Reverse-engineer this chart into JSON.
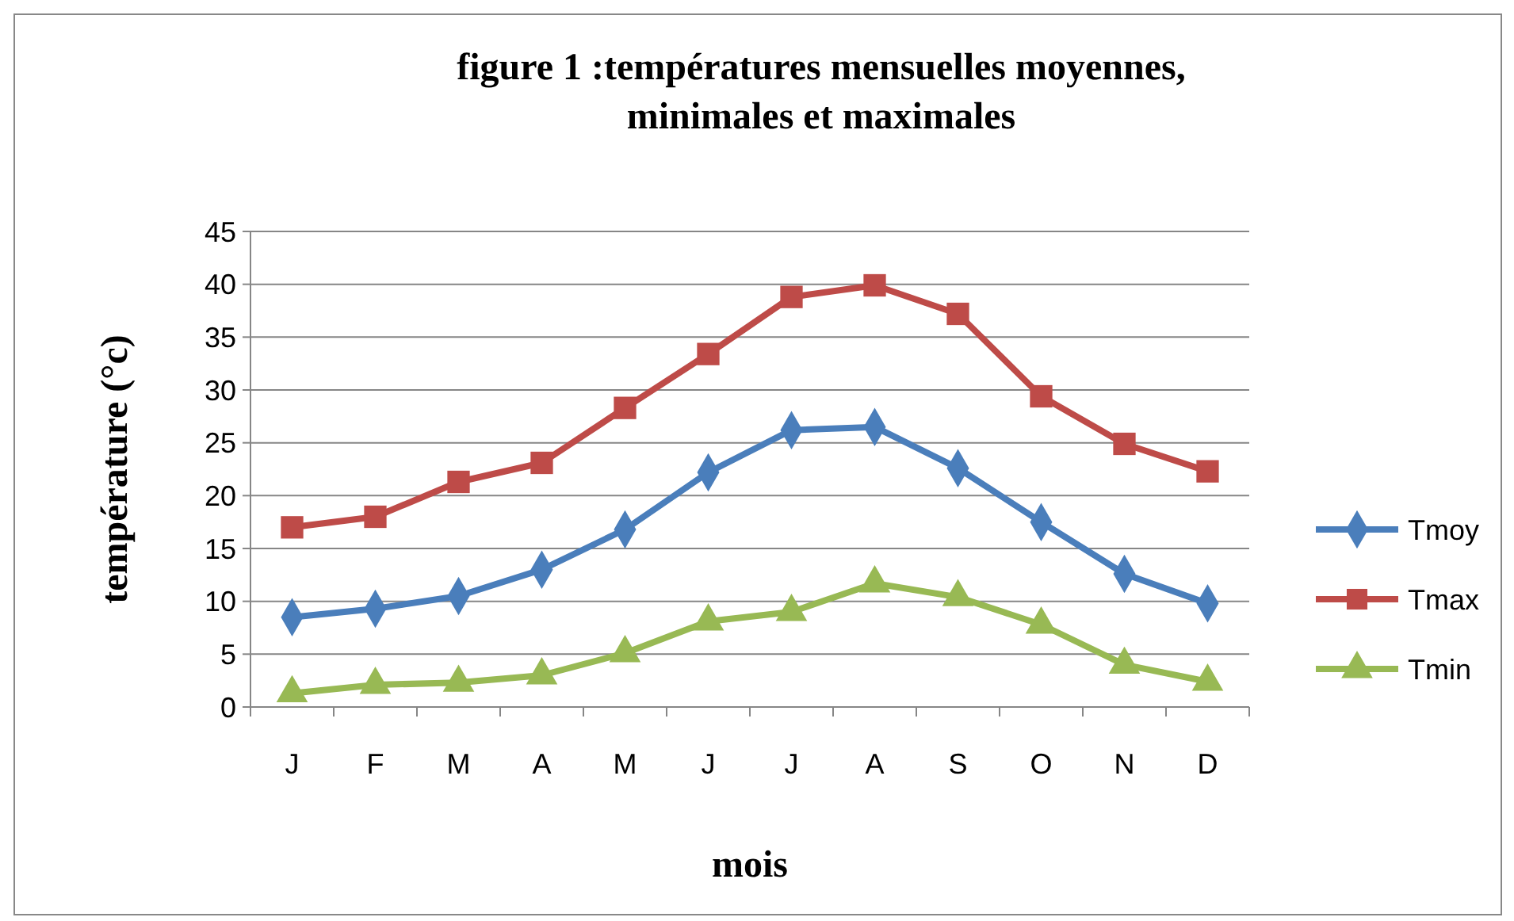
{
  "chart_data": {
    "type": "line",
    "title": "figure 1 :températures mensuelles moyennes, minimales et maximales",
    "xlabel": "mois",
    "ylabel": "température (°c)",
    "categories": [
      "J",
      "F",
      "M",
      "A",
      "M",
      "J",
      "J",
      "A",
      "S",
      "O",
      "N",
      "D"
    ],
    "series": [
      {
        "name": "Tmoy",
        "color": "#4a7ebb",
        "marker": "diamond",
        "values": [
          8.5,
          9.3,
          10.5,
          13,
          16.8,
          22.2,
          26.2,
          26.5,
          22.6,
          17.5,
          12.6,
          9.8
        ]
      },
      {
        "name": "Tmax",
        "color": "#be4b48",
        "marker": "square",
        "values": [
          17,
          18,
          21.3,
          23.1,
          28.3,
          33.4,
          38.8,
          39.9,
          37.2,
          29.4,
          24.9,
          22.3
        ]
      },
      {
        "name": "Tmin",
        "color": "#98b954",
        "marker": "triangle",
        "values": [
          1.3,
          2.1,
          2.3,
          3,
          5.1,
          8.1,
          9,
          11.7,
          10.4,
          7.8,
          4,
          2.4
        ]
      }
    ],
    "ylim": [
      0,
      45
    ],
    "yticks": [
      0,
      5,
      10,
      15,
      20,
      25,
      30,
      35,
      40,
      45
    ],
    "grid": "y",
    "legend": "right",
    "line_style": "solid"
  }
}
